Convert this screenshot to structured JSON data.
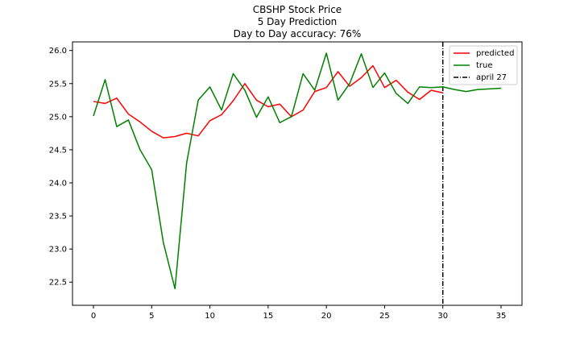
{
  "chart_data": {
    "type": "line",
    "title_lines": [
      "CBSHP Stock Price",
      "5 Day Prediction",
      "Day to Day accuracy: 76%"
    ],
    "xlabel": "",
    "ylabel": "",
    "xlim": [
      -1.8,
      36.8
    ],
    "ylim": [
      22.15,
      26.13
    ],
    "xticks": [
      0,
      5,
      10,
      15,
      20,
      25,
      30,
      35
    ],
    "yticks": [
      22.5,
      23.0,
      23.5,
      24.0,
      24.5,
      25.0,
      25.5,
      26.0
    ],
    "grid": false,
    "legend_position": "top-right",
    "series": [
      {
        "name": "predicted",
        "color": "#ff0000",
        "x": [
          0,
          1,
          2,
          3,
          4,
          5,
          6,
          7,
          8,
          9,
          10,
          11,
          12,
          13,
          14,
          15,
          16,
          17,
          18,
          19,
          20,
          21,
          22,
          23,
          24,
          25,
          26,
          27,
          28,
          29,
          30
        ],
        "y": [
          25.23,
          25.2,
          25.28,
          25.04,
          24.92,
          24.78,
          24.68,
          24.7,
          24.75,
          24.71,
          24.94,
          25.03,
          25.24,
          25.5,
          25.25,
          25.15,
          25.19,
          25.0,
          25.1,
          25.38,
          25.44,
          25.68,
          25.46,
          25.59,
          25.77,
          25.44,
          25.55,
          25.37,
          25.26,
          25.4,
          25.36
        ]
      },
      {
        "name": "true",
        "color": "#008000",
        "x": [
          0,
          1,
          2,
          3,
          4,
          5,
          6,
          7,
          8,
          9,
          10,
          11,
          12,
          13,
          14,
          15,
          16,
          17,
          18,
          19,
          20,
          21,
          22,
          23,
          24,
          25,
          26,
          27,
          28,
          29,
          30,
          31,
          32,
          33,
          34,
          35
        ],
        "y": [
          25.01,
          25.56,
          24.85,
          24.95,
          24.5,
          24.2,
          23.1,
          22.4,
          24.3,
          25.25,
          25.45,
          25.1,
          25.65,
          25.4,
          24.99,
          25.3,
          24.91,
          25.0,
          25.65,
          25.4,
          25.96,
          25.25,
          25.5,
          25.95,
          25.44,
          25.66,
          25.35,
          25.2,
          25.45,
          25.44,
          25.45,
          25.41,
          25.38,
          25.41,
          25.42,
          25.43
        ]
      }
    ],
    "vline": {
      "name": "april 27",
      "x": 30,
      "color": "#000000",
      "style": "dashdot"
    }
  }
}
